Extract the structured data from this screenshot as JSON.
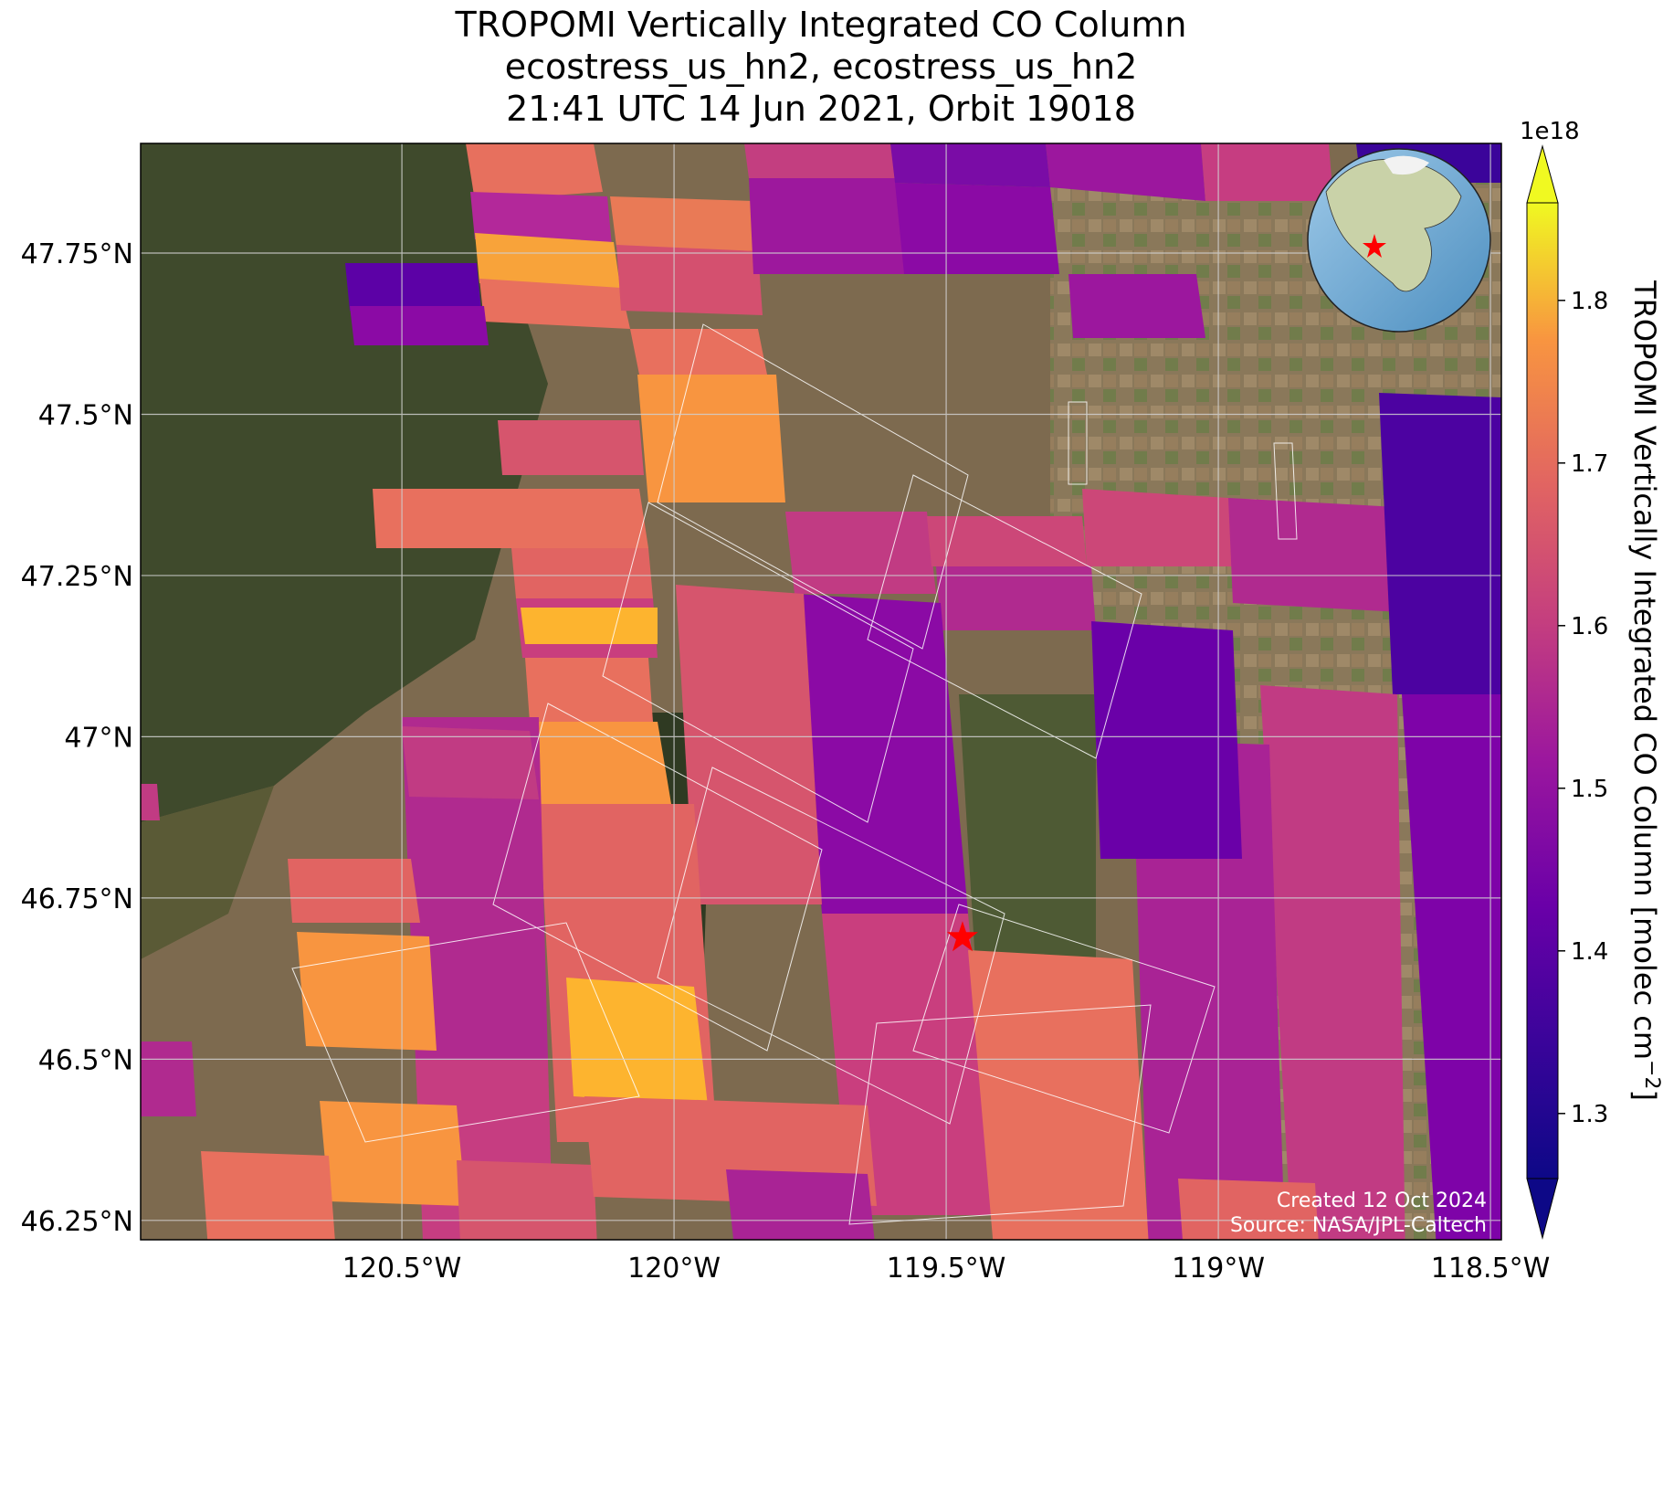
{
  "title": {
    "line1": "TROPOMI Vertically Integrated CO Column",
    "line2": "ecostress_us_hn2, ecostress_us_hn2",
    "line3": "21:41 UTC 14 Jun 2021, Orbit 19018"
  },
  "map": {
    "lon_range": [
      -120.98,
      -118.48
    ],
    "lat_range": [
      46.22,
      47.92
    ],
    "lon_ticks": [
      "120.5°W",
      "120°W",
      "119.5°W",
      "119°W",
      "118.5°W"
    ],
    "lat_ticks": [
      "47.75°N",
      "47.5°N",
      "47.25°N",
      "47°N",
      "46.75°N",
      "46.5°N",
      "46.25°N"
    ],
    "grid": true,
    "basemap": "satellite imagery",
    "site_marker": {
      "lon": -119.47,
      "lat": 46.69,
      "color": "#ff0000"
    },
    "inset": "globe-icon"
  },
  "colorbar": {
    "label": "TROPOMI Vertically Integrated CO Column [molec cm",
    "label_sup": "−2",
    "label_close": "]",
    "exponent": "1e18",
    "ticks": [
      "1.3",
      "1.4",
      "1.5",
      "1.6",
      "1.7",
      "1.8"
    ],
    "range": [
      1.26,
      1.86
    ],
    "colormap": "plasma"
  },
  "footer": {
    "created": "Created 12 Oct 2024",
    "source": "Source: NASA/JPL-Caltech"
  }
}
